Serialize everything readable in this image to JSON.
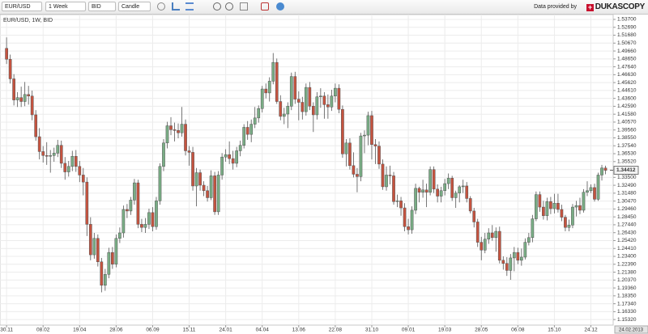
{
  "toolbar": {
    "instrument": "EUR/USD",
    "period": "1 Week",
    "side": "BID",
    "chart_type": "Candle",
    "provider": "Data provided by",
    "logo": "DUKASCOPY"
  },
  "chart_data": {
    "type": "candlestick",
    "title": "EUR/USD, 1W, BID",
    "up_color": "#79ad85",
    "down_color": "#c5533f",
    "grid": true,
    "open": [
      1.5,
      1.486,
      1.461,
      1.434,
      1.437,
      1.432,
      1.441,
      1.439,
      1.415,
      1.387,
      1.368,
      1.363,
      1.362,
      1.363,
      1.366,
      1.376,
      1.353,
      1.342,
      1.349,
      1.362,
      1.349,
      1.338,
      1.329,
      1.275,
      1.236,
      1.257,
      1.227,
      1.197,
      1.211,
      1.239,
      1.224,
      1.257,
      1.264,
      1.294,
      1.292,
      1.306,
      1.328,
      1.275,
      1.271,
      1.275,
      1.29,
      1.272,
      1.305,
      1.349,
      1.379,
      1.401,
      1.396,
      1.395,
      1.392,
      1.403,
      1.369,
      1.367,
      1.324,
      1.341,
      1.325,
      1.318,
      1.309,
      1.337,
      1.291,
      1.338,
      1.361,
      1.364,
      1.359,
      1.353,
      1.369,
      1.376,
      1.399,
      1.39,
      1.403,
      1.411,
      1.423,
      1.448,
      1.443,
      1.458,
      1.482,
      1.432,
      1.413,
      1.416,
      1.426,
      1.464,
      1.435,
      1.431,
      1.419,
      1.45,
      1.426,
      1.415,
      1.438,
      1.439,
      1.428,
      1.425,
      1.439,
      1.449,
      1.422,
      1.365,
      1.379,
      1.35,
      1.339,
      1.336,
      1.388,
      1.389,
      1.414,
      1.377,
      1.375,
      1.352,
      1.323,
      1.338,
      1.337,
      1.304,
      1.305,
      1.296,
      1.272,
      1.268,
      1.293,
      1.321,
      1.316,
      1.319,
      1.316,
      1.345,
      1.32,
      1.311,
      1.318,
      1.327,
      1.334,
      1.309,
      1.315,
      1.323,
      1.324,
      1.308,
      1.292,
      1.278,
      1.252,
      1.242,
      1.256,
      1.264,
      1.258,
      1.266,
      1.229,
      1.225,
      1.216,
      1.232,
      1.239,
      1.229,
      1.233,
      1.252,
      1.258,
      1.282,
      1.313,
      1.297,
      1.286,
      1.304,
      1.295,
      1.302,
      1.294,
      1.284,
      1.271,
      1.274,
      1.297,
      1.299,
      1.293,
      1.316,
      1.318,
      1.322,
      1.307,
      1.338,
      1.347
    ],
    "high": [
      1.514,
      1.492,
      1.467,
      1.444,
      1.451,
      1.457,
      1.452,
      1.446,
      1.421,
      1.398,
      1.375,
      1.38,
      1.37,
      1.373,
      1.383,
      1.382,
      1.361,
      1.356,
      1.369,
      1.37,
      1.356,
      1.347,
      1.335,
      1.284,
      1.264,
      1.262,
      1.232,
      1.218,
      1.245,
      1.246,
      1.262,
      1.271,
      1.299,
      1.301,
      1.31,
      1.333,
      1.332,
      1.282,
      1.283,
      1.295,
      1.297,
      1.31,
      1.353,
      1.384,
      1.406,
      1.412,
      1.405,
      1.404,
      1.425,
      1.409,
      1.375,
      1.374,
      1.347,
      1.345,
      1.33,
      1.324,
      1.344,
      1.342,
      1.343,
      1.366,
      1.371,
      1.381,
      1.369,
      1.374,
      1.382,
      1.403,
      1.407,
      1.409,
      1.425,
      1.427,
      1.452,
      1.455,
      1.463,
      1.494,
      1.487,
      1.44,
      1.424,
      1.431,
      1.469,
      1.47,
      1.445,
      1.438,
      1.455,
      1.457,
      1.431,
      1.444,
      1.449,
      1.444,
      1.441,
      1.447,
      1.455,
      1.454,
      1.427,
      1.384,
      1.385,
      1.367,
      1.347,
      1.392,
      1.395,
      1.419,
      1.42,
      1.384,
      1.381,
      1.358,
      1.349,
      1.35,
      1.342,
      1.313,
      1.31,
      1.302,
      1.282,
      1.298,
      1.327,
      1.323,
      1.332,
      1.327,
      1.349,
      1.349,
      1.326,
      1.323,
      1.333,
      1.34,
      1.337,
      1.318,
      1.325,
      1.332,
      1.329,
      1.311,
      1.296,
      1.282,
      1.259,
      1.264,
      1.27,
      1.274,
      1.271,
      1.272,
      1.234,
      1.233,
      1.237,
      1.246,
      1.245,
      1.244,
      1.257,
      1.264,
      1.287,
      1.317,
      1.317,
      1.305,
      1.309,
      1.31,
      1.314,
      1.314,
      1.3,
      1.287,
      1.281,
      1.301,
      1.305,
      1.309,
      1.32,
      1.33,
      1.326,
      1.327,
      1.341,
      1.351,
      1.35
    ],
    "low": [
      1.48,
      1.455,
      1.427,
      1.425,
      1.425,
      1.426,
      1.428,
      1.408,
      1.382,
      1.358,
      1.354,
      1.351,
      1.341,
      1.355,
      1.361,
      1.347,
      1.332,
      1.336,
      1.343,
      1.342,
      1.329,
      1.312,
      1.26,
      1.229,
      1.231,
      1.221,
      1.188,
      1.19,
      1.206,
      1.218,
      1.22,
      1.251,
      1.258,
      1.283,
      1.287,
      1.3,
      1.27,
      1.265,
      1.264,
      1.269,
      1.266,
      1.268,
      1.3,
      1.343,
      1.372,
      1.389,
      1.381,
      1.385,
      1.387,
      1.363,
      1.35,
      1.318,
      1.298,
      1.318,
      1.311,
      1.304,
      1.306,
      1.287,
      1.287,
      1.332,
      1.355,
      1.352,
      1.345,
      1.348,
      1.362,
      1.372,
      1.383,
      1.38,
      1.398,
      1.405,
      1.418,
      1.436,
      1.432,
      1.454,
      1.429,
      1.408,
      1.403,
      1.398,
      1.421,
      1.429,
      1.408,
      1.409,
      1.414,
      1.421,
      1.393,
      1.409,
      1.424,
      1.41,
      1.41,
      1.42,
      1.431,
      1.417,
      1.36,
      1.349,
      1.345,
      1.335,
      1.316,
      1.33,
      1.366,
      1.376,
      1.358,
      1.352,
      1.346,
      1.319,
      1.318,
      1.326,
      1.3,
      1.297,
      1.286,
      1.266,
      1.262,
      1.263,
      1.288,
      1.303,
      1.309,
      1.297,
      1.312,
      1.315,
      1.303,
      1.303,
      1.312,
      1.32,
      1.305,
      1.296,
      1.303,
      1.315,
      1.303,
      1.289,
      1.271,
      1.246,
      1.229,
      1.238,
      1.25,
      1.254,
      1.24,
      1.225,
      1.217,
      1.209,
      1.204,
      1.215,
      1.224,
      1.222,
      1.23,
      1.248,
      1.252,
      1.279,
      1.291,
      1.281,
      1.28,
      1.288,
      1.289,
      1.29,
      1.279,
      1.266,
      1.266,
      1.27,
      1.285,
      1.288,
      1.29,
      1.311,
      1.315,
      1.304,
      1.305,
      1.331,
      1.339
    ],
    "close": [
      1.486,
      1.461,
      1.434,
      1.437,
      1.432,
      1.441,
      1.439,
      1.415,
      1.387,
      1.368,
      1.363,
      1.362,
      1.363,
      1.366,
      1.376,
      1.353,
      1.342,
      1.349,
      1.362,
      1.349,
      1.338,
      1.329,
      1.275,
      1.236,
      1.257,
      1.227,
      1.197,
      1.211,
      1.239,
      1.224,
      1.257,
      1.264,
      1.294,
      1.292,
      1.306,
      1.328,
      1.275,
      1.271,
      1.275,
      1.29,
      1.272,
      1.305,
      1.349,
      1.379,
      1.401,
      1.396,
      1.395,
      1.392,
      1.403,
      1.369,
      1.367,
      1.324,
      1.341,
      1.325,
      1.318,
      1.309,
      1.337,
      1.291,
      1.338,
      1.361,
      1.364,
      1.359,
      1.353,
      1.369,
      1.376,
      1.399,
      1.39,
      1.403,
      1.411,
      1.423,
      1.448,
      1.443,
      1.458,
      1.482,
      1.432,
      1.413,
      1.416,
      1.426,
      1.464,
      1.435,
      1.431,
      1.419,
      1.45,
      1.426,
      1.415,
      1.438,
      1.439,
      1.428,
      1.425,
      1.439,
      1.449,
      1.422,
      1.365,
      1.379,
      1.35,
      1.339,
      1.336,
      1.388,
      1.389,
      1.414,
      1.377,
      1.375,
      1.352,
      1.323,
      1.338,
      1.337,
      1.304,
      1.305,
      1.296,
      1.272,
      1.268,
      1.293,
      1.321,
      1.316,
      1.319,
      1.316,
      1.345,
      1.32,
      1.311,
      1.318,
      1.327,
      1.334,
      1.309,
      1.315,
      1.323,
      1.324,
      1.308,
      1.292,
      1.278,
      1.252,
      1.242,
      1.256,
      1.264,
      1.258,
      1.266,
      1.229,
      1.225,
      1.216,
      1.232,
      1.239,
      1.229,
      1.233,
      1.252,
      1.258,
      1.282,
      1.313,
      1.297,
      1.286,
      1.304,
      1.295,
      1.302,
      1.294,
      1.284,
      1.271,
      1.274,
      1.297,
      1.299,
      1.293,
      1.316,
      1.318,
      1.322,
      1.307,
      1.338,
      1.347,
      1.344
    ],
    "current_price": 1.34412,
    "xlim": [
      -1.8,
      166.1
    ],
    "xticks": [
      {
        "value": 0,
        "label": "30.11"
      },
      {
        "value": 10,
        "label": "08.02"
      },
      {
        "value": 20,
        "label": "19.04"
      },
      {
        "value": 30,
        "label": "28.06"
      },
      {
        "value": 40,
        "label": "06.09"
      },
      {
        "value": 50,
        "label": "15.11"
      },
      {
        "value": 60,
        "label": "24.01"
      },
      {
        "value": 70,
        "label": "04.04"
      },
      {
        "value": 80,
        "label": "13.06"
      },
      {
        "value": 90,
        "label": "22.08"
      },
      {
        "value": 100,
        "label": "31.10"
      },
      {
        "value": 110,
        "label": "09.01"
      },
      {
        "value": 120,
        "label": "19.03"
      },
      {
        "value": 130,
        "label": "28.05"
      },
      {
        "value": 140,
        "label": "06.08"
      },
      {
        "value": 150,
        "label": "15.10"
      },
      {
        "value": 160,
        "label": "24.12"
      }
    ],
    "x_end_label": "24.02.2013",
    "ylim": [
      1.1461,
      1.5432
    ],
    "yticks": [
      {
        "value": 1.537,
        "label": "1.53700"
      },
      {
        "value": 1.5269,
        "label": "1.52690"
      },
      {
        "value": 1.5168,
        "label": "1.51680"
      },
      {
        "value": 1.5067,
        "label": "1.50670"
      },
      {
        "value": 1.4966,
        "label": "1.49660"
      },
      {
        "value": 1.4865,
        "label": "1.48650"
      },
      {
        "value": 1.4764,
        "label": "1.47640"
      },
      {
        "value": 1.4663,
        "label": "1.46630"
      },
      {
        "value": 1.4562,
        "label": "1.45620"
      },
      {
        "value": 1.4461,
        "label": "1.44610"
      },
      {
        "value": 1.436,
        "label": "1.43600"
      },
      {
        "value": 1.4259,
        "label": "1.42590"
      },
      {
        "value": 1.4158,
        "label": "1.41580"
      },
      {
        "value": 1.4057,
        "label": "1.40570"
      },
      {
        "value": 1.3956,
        "label": "1.39560"
      },
      {
        "value": 1.3855,
        "label": "1.38550"
      },
      {
        "value": 1.3754,
        "label": "1.37540"
      },
      {
        "value": 1.3653,
        "label": "1.36530"
      },
      {
        "value": 1.3552,
        "label": "1.35520"
      },
      {
        "value": 1.3451,
        "label": "1.34510"
      },
      {
        "value": 1.335,
        "label": "1.33500"
      },
      {
        "value": 1.3249,
        "label": "1.32490"
      },
      {
        "value": 1.3148,
        "label": "1.31480"
      },
      {
        "value": 1.3047,
        "label": "1.30470"
      },
      {
        "value": 1.2946,
        "label": "1.29460"
      },
      {
        "value": 1.2845,
        "label": "1.28450"
      },
      {
        "value": 1.2744,
        "label": "1.27440"
      },
      {
        "value": 1.2643,
        "label": "1.26430"
      },
      {
        "value": 1.2542,
        "label": "1.25420"
      },
      {
        "value": 1.2441,
        "label": "1.24410"
      },
      {
        "value": 1.234,
        "label": "1.23400"
      },
      {
        "value": 1.2239,
        "label": "1.22390"
      },
      {
        "value": 1.2138,
        "label": "1.21380"
      },
      {
        "value": 1.2037,
        "label": "1.20370"
      },
      {
        "value": 1.1936,
        "label": "1.19360"
      },
      {
        "value": 1.1835,
        "label": "1.18350"
      },
      {
        "value": 1.1734,
        "label": "1.17340"
      },
      {
        "value": 1.1633,
        "label": "1.16330"
      },
      {
        "value": 1.1532,
        "label": "1.15320"
      }
    ]
  }
}
